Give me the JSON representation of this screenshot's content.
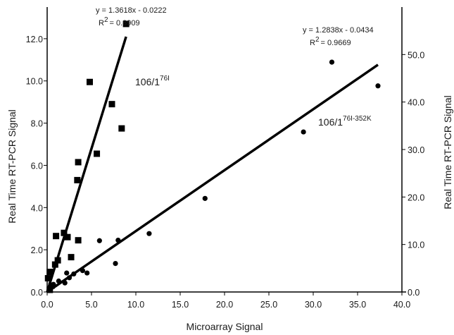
{
  "chart_data": {
    "type": "scatter",
    "xlabel": "Microarray Signal",
    "ylabel_left": "Real Time RT-PCR Signal",
    "ylabel_right": "Real Time RT-PCR Signal",
    "xlim": [
      0,
      40
    ],
    "ylim_left": [
      0,
      13.5
    ],
    "ylim_right": [
      0,
      60
    ],
    "x_ticks": [
      "0.0",
      "5.0",
      "10.0",
      "15.0",
      "20.0",
      "25.0",
      "30.0",
      "35.0",
      "40.0"
    ],
    "y_left_ticks": [
      "0.0",
      "2.0",
      "4.0",
      "6.0",
      "8.0",
      "10.0",
      "12.0"
    ],
    "y_right_ticks": [
      "0.0",
      "10.0",
      "20.0",
      "30.0",
      "40.0",
      "50.0"
    ],
    "grid": false,
    "series": [
      {
        "name": "106/1",
        "name_sup": "76I",
        "marker": "square",
        "axis": "left",
        "points": [
          [
            0.1,
            0.65
          ],
          [
            0.3,
            0.95
          ],
          [
            0.3,
            0.1
          ],
          [
            0.5,
            0.3
          ],
          [
            0.9,
            1.3
          ],
          [
            1.2,
            1.5
          ],
          [
            1.0,
            2.65
          ],
          [
            1.9,
            2.8
          ],
          [
            2.3,
            2.6
          ],
          [
            2.7,
            1.65
          ],
          [
            3.5,
            2.45
          ],
          [
            3.4,
            5.3
          ],
          [
            3.5,
            6.15
          ],
          [
            4.8,
            9.95
          ],
          [
            5.6,
            6.55
          ],
          [
            7.3,
            8.9
          ],
          [
            8.4,
            7.75
          ],
          [
            8.9,
            12.7
          ]
        ],
        "fit": {
          "slope": 1.3618,
          "intercept": -0.0222,
          "x_range": [
            0,
            8.9
          ]
        },
        "equation": "y = 1.3618x - 0.0222",
        "r2_label": "R",
        "r2_sup": "2",
        "r2_value": "= 0.8909"
      },
      {
        "name": "106/1",
        "name_sup": "76I-352K",
        "marker": "circle",
        "axis": "right",
        "points": [
          [
            0.2,
            0.3
          ],
          [
            0.4,
            0.8
          ],
          [
            0.7,
            1.6
          ],
          [
            1.3,
            2.3
          ],
          [
            2.0,
            1.9
          ],
          [
            2.2,
            4.0
          ],
          [
            2.5,
            3.0
          ],
          [
            3.0,
            3.8
          ],
          [
            4.0,
            4.5
          ],
          [
            4.5,
            4.0
          ],
          [
            5.9,
            10.8
          ],
          [
            7.7,
            6.0
          ],
          [
            8.0,
            10.9
          ],
          [
            11.5,
            12.3
          ],
          [
            17.8,
            19.7
          ],
          [
            28.9,
            33.7
          ],
          [
            32.1,
            48.4
          ],
          [
            37.3,
            43.4
          ]
        ],
        "fit": {
          "slope": 1.2838,
          "intercept": -0.0434,
          "x_range": [
            0,
            37.3
          ]
        },
        "equation": "y = 1.2838x - 0.0434",
        "r2_label": "R",
        "r2_sup": "2",
        "r2_value": "= 0.9669"
      }
    ]
  }
}
